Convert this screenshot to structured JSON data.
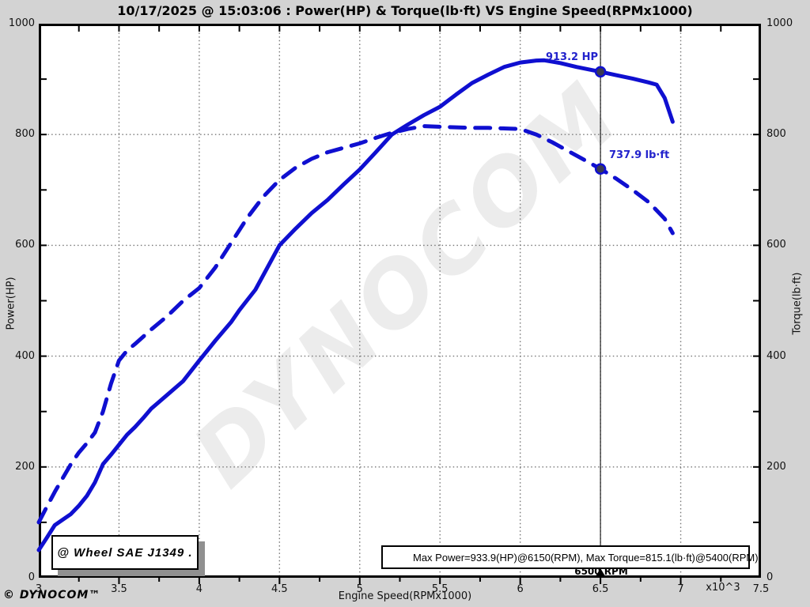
{
  "title": "10/17/2025 @ 15:03:06 : Power(HP) & Torque(lb·ft) VS Engine Speed(RPMx1000)",
  "watermark_text": "DYNOCOM",
  "footer": {
    "copyright": "© DYNOCOM™"
  },
  "sae_label": "@ Wheel SAE J1349 .",
  "colors": {
    "curve_blue": "#0f0fd0",
    "annotation_blue": "#2222cc",
    "background_gray": "#d3d3d3",
    "plot_white": "#ffffff",
    "grid_gray": "#777777",
    "marker_fill": "#3a3a52"
  },
  "legend": {
    "text": "Max Power=933.9(HP)@6150(RPM), Max Torque=815.1(lb·ft)@5400(RPM)"
  },
  "cursor": {
    "rpm_x1000": 6.5,
    "label": "6500 RPM",
    "power_label": "913.2 HP",
    "torque_label": "737.9 lb·ft",
    "power_value": 913.2,
    "torque_value": 737.9
  },
  "chart_data": {
    "type": "line",
    "title": "Power(HP) & Torque(lb·ft) VS Engine Speed(RPMx1000)",
    "xlabel": "Engine Speed(RPMx1000)",
    "ylabel_left": "Power(HP)",
    "ylabel_right": "Torque(lb·ft)",
    "x_unit_note": "x10^3",
    "xlim": [
      3,
      7.5
    ],
    "ylim": [
      0,
      1000
    ],
    "x_ticks": [
      3,
      3.5,
      4,
      4.5,
      5,
      5.5,
      6,
      6.5,
      7,
      7.5
    ],
    "x_minor_step": 0.25,
    "y_ticks": [
      0,
      200,
      400,
      600,
      800,
      1000
    ],
    "y_minor_step": 100,
    "grid": true,
    "max_power": {
      "value": 933.9,
      "unit": "HP",
      "rpm": 6150
    },
    "max_torque": {
      "value": 815.1,
      "unit": "lb·ft",
      "rpm": 5400
    },
    "series": [
      {
        "name": "Power(HP)",
        "style": "solid",
        "color": "#0f0fd0",
        "points": [
          [
            3.0,
            50
          ],
          [
            3.05,
            72
          ],
          [
            3.1,
            95
          ],
          [
            3.15,
            105
          ],
          [
            3.2,
            115
          ],
          [
            3.25,
            130
          ],
          [
            3.3,
            148
          ],
          [
            3.35,
            172
          ],
          [
            3.4,
            205
          ],
          [
            3.45,
            222
          ],
          [
            3.5,
            240
          ],
          [
            3.55,
            258
          ],
          [
            3.6,
            272
          ],
          [
            3.65,
            288
          ],
          [
            3.7,
            305
          ],
          [
            3.8,
            330
          ],
          [
            3.9,
            355
          ],
          [
            4.0,
            392
          ],
          [
            4.1,
            428
          ],
          [
            4.2,
            462
          ],
          [
            4.25,
            483
          ],
          [
            4.35,
            520
          ],
          [
            4.5,
            600
          ],
          [
            4.6,
            630
          ],
          [
            4.7,
            658
          ],
          [
            4.8,
            682
          ],
          [
            4.9,
            710
          ],
          [
            5.0,
            737
          ],
          [
            5.1,
            768
          ],
          [
            5.2,
            800
          ],
          [
            5.3,
            818
          ],
          [
            5.4,
            835
          ],
          [
            5.5,
            850
          ],
          [
            5.6,
            872
          ],
          [
            5.7,
            893
          ],
          [
            5.8,
            908
          ],
          [
            5.9,
            922
          ],
          [
            6.0,
            930
          ],
          [
            6.1,
            933.5
          ],
          [
            6.15,
            933.9
          ],
          [
            6.25,
            929
          ],
          [
            6.35,
            922
          ],
          [
            6.5,
            913.2
          ],
          [
            6.6,
            907
          ],
          [
            6.7,
            901
          ],
          [
            6.8,
            894
          ],
          [
            6.85,
            890
          ],
          [
            6.9,
            866
          ],
          [
            6.95,
            823
          ]
        ]
      },
      {
        "name": "Torque(lb·ft)",
        "style": "dashed",
        "color": "#0f0fd0",
        "points": [
          [
            3.0,
            100
          ],
          [
            3.05,
            128
          ],
          [
            3.1,
            155
          ],
          [
            3.15,
            180
          ],
          [
            3.2,
            205
          ],
          [
            3.25,
            226
          ],
          [
            3.3,
            243
          ],
          [
            3.35,
            262
          ],
          [
            3.4,
            300
          ],
          [
            3.45,
            350
          ],
          [
            3.5,
            392
          ],
          [
            3.55,
            410
          ],
          [
            3.6,
            422
          ],
          [
            3.65,
            435
          ],
          [
            3.7,
            448
          ],
          [
            3.8,
            472
          ],
          [
            3.9,
            500
          ],
          [
            4.0,
            523
          ],
          [
            4.1,
            560
          ],
          [
            4.2,
            605
          ],
          [
            4.3,
            650
          ],
          [
            4.4,
            688
          ],
          [
            4.5,
            718
          ],
          [
            4.6,
            740
          ],
          [
            4.7,
            756
          ],
          [
            4.8,
            768
          ],
          [
            4.9,
            776
          ],
          [
            5.0,
            784
          ],
          [
            5.1,
            794
          ],
          [
            5.2,
            803
          ],
          [
            5.3,
            810
          ],
          [
            5.4,
            815.1
          ],
          [
            5.5,
            814
          ],
          [
            5.6,
            813
          ],
          [
            5.7,
            812
          ],
          [
            5.8,
            812
          ],
          [
            5.9,
            811
          ],
          [
            6.0,
            810
          ],
          [
            6.1,
            800
          ],
          [
            6.2,
            786
          ],
          [
            6.3,
            770
          ],
          [
            6.4,
            754
          ],
          [
            6.5,
            737.9
          ],
          [
            6.6,
            720
          ],
          [
            6.7,
            700
          ],
          [
            6.8,
            678
          ],
          [
            6.9,
            648
          ],
          [
            6.95,
            622
          ]
        ]
      }
    ]
  }
}
